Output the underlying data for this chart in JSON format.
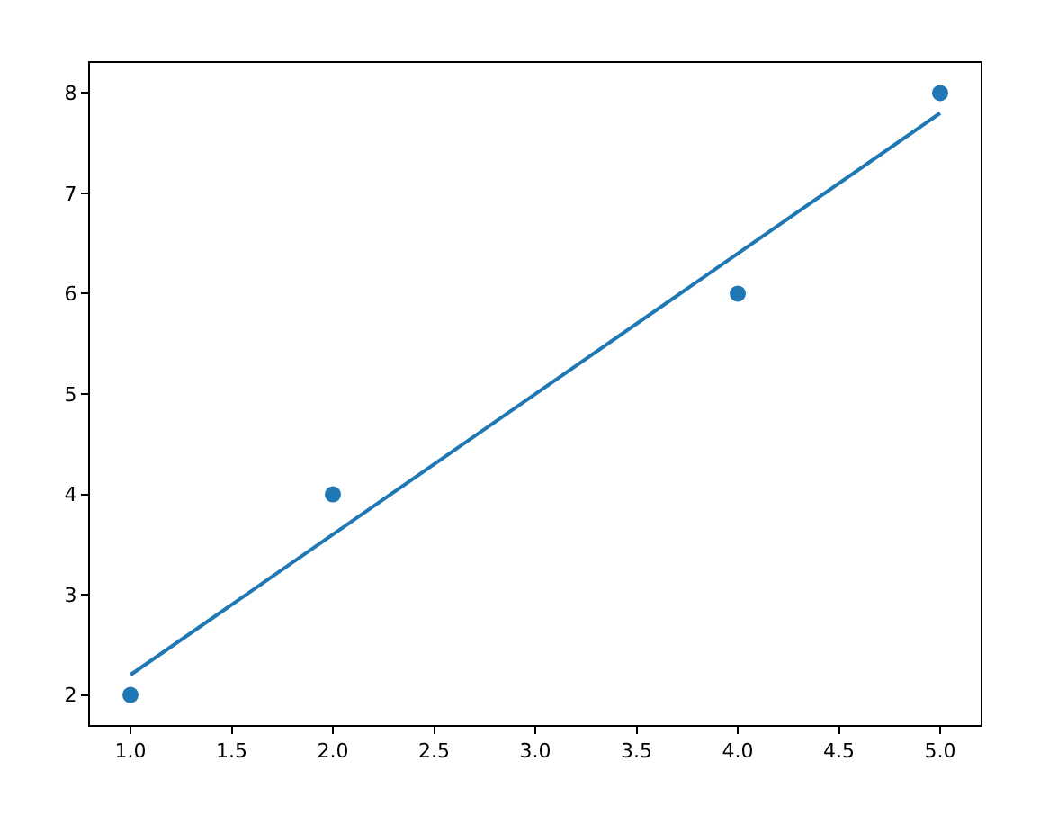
{
  "chart_data": {
    "type": "scatter",
    "grid": false,
    "xlim": [
      0.8,
      5.2
    ],
    "ylim": [
      1.7,
      8.3
    ],
    "xticks": [
      {
        "value": 1,
        "label": "1.0"
      },
      {
        "value": 1.5,
        "label": "1.5"
      },
      {
        "value": 2,
        "label": "2.0"
      },
      {
        "value": 2.5,
        "label": "2.5"
      },
      {
        "value": 3,
        "label": "3.0"
      },
      {
        "value": 3.5,
        "label": "3.5"
      },
      {
        "value": 4,
        "label": "4.0"
      },
      {
        "value": 4.5,
        "label": "4.5"
      },
      {
        "value": 5,
        "label": "5.0"
      }
    ],
    "yticks": [
      2,
      3,
      4,
      5,
      6,
      7,
      8
    ],
    "series": [
      {
        "marker": "circle",
        "color": "#1f77b4",
        "x": [
          1,
          2,
          4,
          5
        ],
        "values": [
          2,
          4,
          6,
          8
        ]
      },
      {
        "type": "line",
        "color": "#1f77b4",
        "x": [
          1,
          5
        ],
        "values": [
          2.2,
          7.8
        ]
      }
    ]
  }
}
